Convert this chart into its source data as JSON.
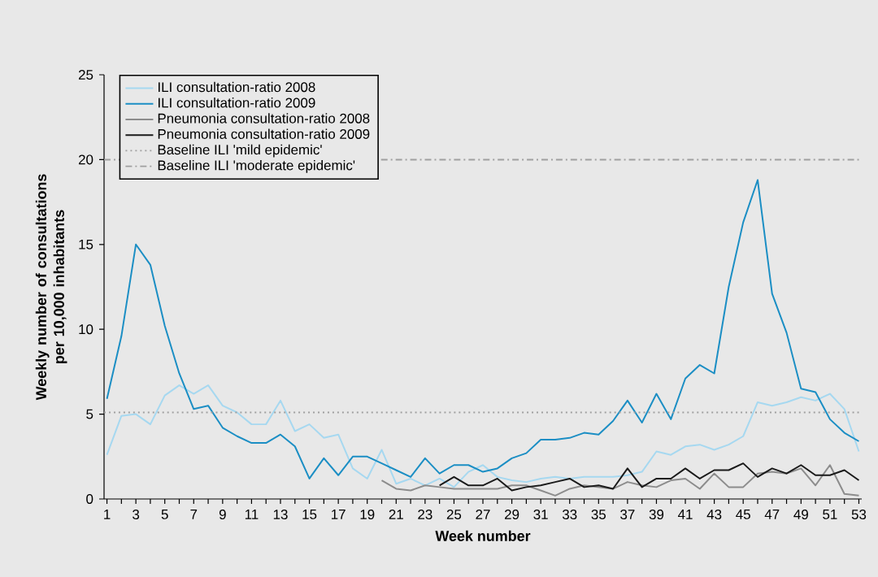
{
  "chart_data": {
    "type": "line",
    "xlabel": "Week number",
    "ylabel": "Weekly number of consultations per 10,000 inhabitants",
    "x": [
      1,
      2,
      3,
      4,
      5,
      6,
      7,
      8,
      9,
      10,
      11,
      12,
      13,
      14,
      15,
      16,
      17,
      18,
      19,
      20,
      21,
      22,
      23,
      24,
      25,
      26,
      27,
      28,
      29,
      30,
      31,
      32,
      33,
      34,
      35,
      36,
      37,
      38,
      39,
      40,
      41,
      42,
      43,
      44,
      45,
      46,
      47,
      48,
      49,
      50,
      51,
      52,
      53
    ],
    "series": [
      {
        "name": "ILI consultation-ratio 2008",
        "color": "#a6d8f0",
        "values": [
          2.6,
          4.9,
          5.0,
          4.4,
          6.1,
          6.7,
          6.2,
          6.7,
          5.5,
          5.1,
          4.4,
          4.4,
          5.8,
          4.0,
          4.4,
          3.6,
          3.8,
          1.8,
          1.2,
          2.9,
          0.9,
          1.2,
          0.8,
          1.2,
          0.7,
          1.6,
          2.0,
          1.3,
          1.1,
          1.0,
          1.2,
          1.3,
          1.2,
          1.3,
          1.3,
          1.3,
          1.4,
          1.6,
          2.8,
          2.6,
          3.1,
          3.2,
          2.9,
          3.2,
          3.7,
          5.7,
          5.5,
          5.7,
          6.0,
          5.8,
          6.2,
          5.3,
          2.8
        ]
      },
      {
        "name": "ILI consultation-ratio 2009",
        "color": "#1b8ec4",
        "values": [
          5.9,
          9.6,
          15.0,
          13.8,
          10.2,
          7.4,
          5.3,
          5.5,
          4.2,
          3.7,
          3.3,
          3.3,
          3.8,
          3.1,
          1.2,
          2.4,
          1.4,
          2.5,
          2.5,
          2.1,
          1.7,
          1.3,
          2.4,
          1.5,
          2.0,
          2.0,
          1.6,
          1.8,
          2.4,
          2.7,
          3.5,
          3.5,
          3.6,
          3.9,
          3.8,
          4.6,
          5.8,
          4.5,
          6.2,
          4.7,
          7.1,
          7.9,
          7.4,
          12.5,
          16.3,
          18.8,
          12.1,
          9.8,
          6.5,
          6.3,
          4.7,
          3.9,
          3.4
        ]
      },
      {
        "name": "Pneumonia consultation-ratio 2008",
        "color": "#8c8c8c",
        "values": [
          null,
          null,
          null,
          null,
          null,
          null,
          null,
          null,
          null,
          null,
          null,
          null,
          null,
          null,
          null,
          null,
          null,
          null,
          null,
          1.1,
          0.6,
          0.5,
          0.8,
          0.7,
          0.6,
          0.6,
          0.6,
          0.6,
          0.8,
          0.8,
          0.5,
          0.2,
          0.6,
          0.8,
          0.7,
          0.6,
          1.0,
          0.8,
          0.7,
          1.1,
          1.2,
          0.6,
          1.5,
          0.7,
          0.7,
          1.5,
          1.6,
          1.5,
          1.8,
          0.8,
          2.0,
          0.3,
          0.2
        ]
      },
      {
        "name": "Pneumonia consultation-ratio 2009",
        "color": "#1a1a1a",
        "values": [
          null,
          null,
          null,
          null,
          null,
          null,
          null,
          null,
          null,
          null,
          null,
          null,
          null,
          null,
          null,
          null,
          null,
          null,
          null,
          null,
          null,
          null,
          null,
          0.8,
          1.3,
          0.8,
          0.8,
          1.2,
          0.5,
          0.7,
          0.8,
          1.0,
          1.2,
          0.7,
          0.8,
          0.6,
          1.8,
          0.7,
          1.2,
          1.2,
          1.8,
          1.2,
          1.7,
          1.7,
          2.1,
          1.3,
          1.8,
          1.5,
          2.0,
          1.4,
          1.4,
          1.7,
          1.1
        ]
      }
    ],
    "ref_lines": [
      {
        "axis": "y",
        "value": 5.1,
        "label": "Baseline ILI 'mild epidemic'",
        "color": "#a0a0a0",
        "line_style": "dotted"
      },
      {
        "axis": "y",
        "value": 20,
        "label": "Baseline ILI 'moderate epidemic'",
        "color": "#a0a0a0",
        "line_style": "dashdot"
      }
    ],
    "xlim": [
      0.8,
      53.2
    ],
    "ylim": [
      0,
      25
    ],
    "xticks": [
      1,
      {
        "value": 2,
        "label": null
      },
      3,
      {
        "value": 4,
        "label": null
      },
      5,
      {
        "value": 6,
        "label": null
      },
      7,
      {
        "value": 8,
        "label": null
      },
      9,
      {
        "value": 10,
        "label": null
      },
      11,
      {
        "value": 12,
        "label": null
      },
      13,
      {
        "value": 14,
        "label": null
      },
      15,
      {
        "value": 16,
        "label": null
      },
      17,
      {
        "value": 18,
        "label": null
      },
      19,
      {
        "value": 20,
        "label": null
      },
      21,
      {
        "value": 22,
        "label": null
      },
      23,
      {
        "value": 24,
        "label": null
      },
      25,
      {
        "value": 26,
        "label": null
      },
      27,
      {
        "value": 28,
        "label": null
      },
      29,
      {
        "value": 30,
        "label": null
      },
      31,
      {
        "value": 32,
        "label": null
      },
      33,
      {
        "value": 34,
        "label": null
      },
      35,
      {
        "value": 36,
        "label": null
      },
      37,
      {
        "value": 38,
        "label": null
      },
      39,
      {
        "value": 40,
        "label": null
      },
      41,
      {
        "value": 42,
        "label": null
      },
      43,
      {
        "value": 44,
        "label": null
      },
      45,
      {
        "value": 46,
        "label": null
      },
      47,
      {
        "value": 48,
        "label": null
      },
      49,
      {
        "value": 50,
        "label": null
      },
      51,
      {
        "value": 52,
        "label": null
      },
      53
    ],
    "yticks": [
      0,
      5,
      10,
      15,
      20,
      25
    ],
    "legend": "top left",
    "grid": false
  }
}
